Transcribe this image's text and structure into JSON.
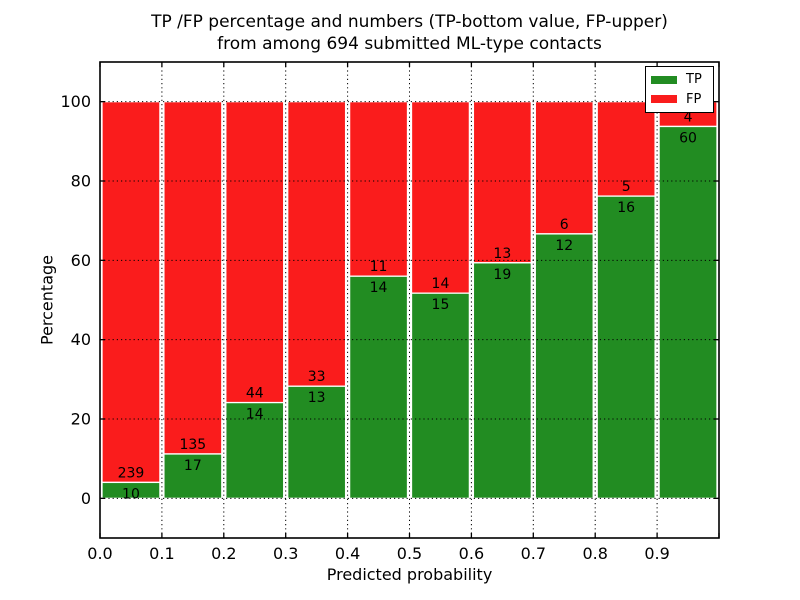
{
  "figure": {
    "title_line1": "TP /FP percentage and numbers (TP-bottom value, FP-upper)",
    "title_line2": "from among 694 submitted ML-type contacts",
    "xlabel": "Predicted probability",
    "ylabel": "Percentage"
  },
  "legend": {
    "items": [
      {
        "label": "TP",
        "color": "#228c22"
      },
      {
        "label": "FP",
        "color": "#fa1c1c"
      }
    ]
  },
  "chart_data": {
    "type": "bar",
    "stacked": true,
    "normalization": "each bin scaled to 100 percent; labels show raw counts",
    "title": "TP /FP percentage and numbers (TP-bottom value, FP-upper) from among 694 submitted ML-type contacts",
    "xlabel": "Predicted probability",
    "ylabel": "Percentage",
    "total_contacts": 694,
    "bin_edges": [
      0.0,
      0.1,
      0.2,
      0.3,
      0.4,
      0.5,
      0.6,
      0.7,
      0.8,
      0.9,
      1.0
    ],
    "series": [
      {
        "name": "TP",
        "color": "#228c22",
        "counts": [
          10,
          17,
          14,
          13,
          14,
          15,
          19,
          12,
          16,
          60
        ]
      },
      {
        "name": "FP",
        "color": "#fa1c1c",
        "counts": [
          239,
          135,
          44,
          33,
          11,
          14,
          13,
          6,
          5,
          4
        ]
      }
    ],
    "tp_percent_heights": [
      4.0,
      11.2,
      24.1,
      28.3,
      56.0,
      51.7,
      59.4,
      66.7,
      76.2,
      93.8
    ],
    "xticks": [
      0.0,
      0.1,
      0.2,
      0.3,
      0.4,
      0.5,
      0.6,
      0.7,
      0.8,
      0.9
    ],
    "xtick_labels": [
      "0.0",
      "0.1",
      "0.2",
      "0.3",
      "0.4",
      "0.5",
      "0.6",
      "0.7",
      "0.8",
      "0.9"
    ],
    "yticks": [
      0,
      20,
      40,
      60,
      80,
      100
    ],
    "ytick_labels": [
      "0",
      "20",
      "40",
      "60",
      "80",
      "100"
    ],
    "xlim": [
      0.0,
      1.0
    ],
    "ylim": [
      -10,
      110
    ],
    "grid": "dotted",
    "legend_position": "upper right"
  }
}
